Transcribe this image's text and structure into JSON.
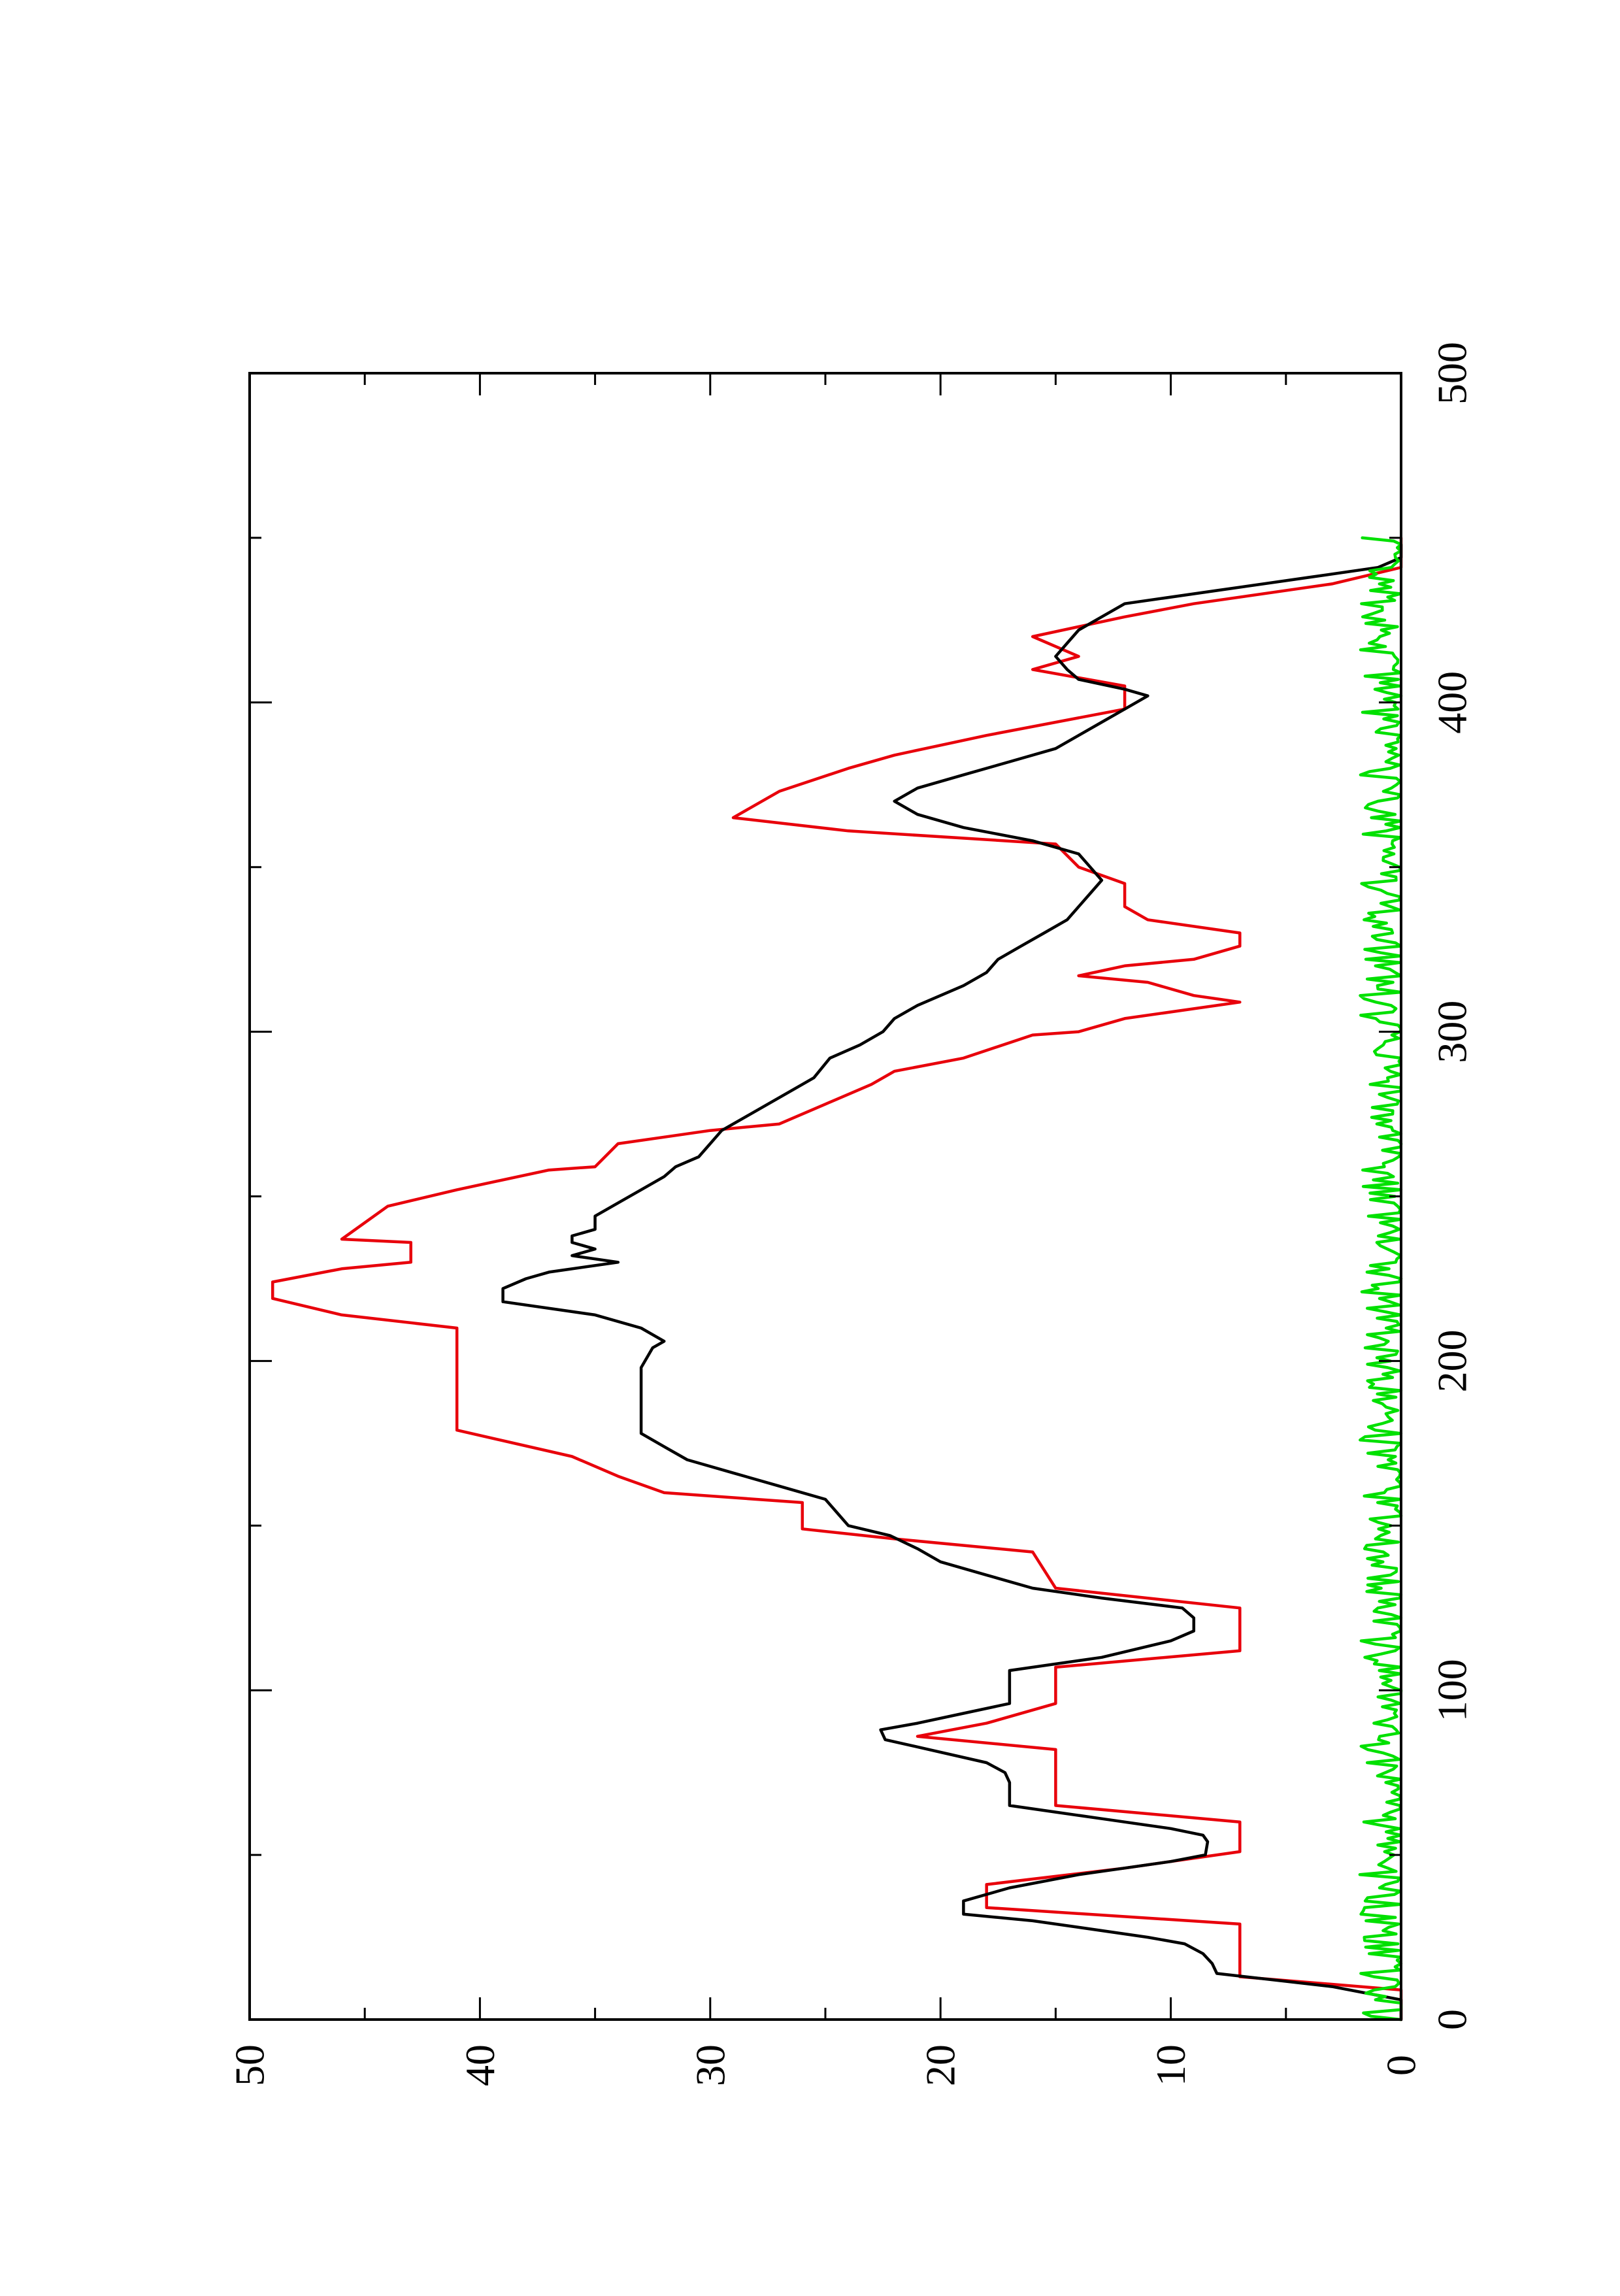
{
  "chart_data": {
    "type": "line",
    "orientation": "rotated-90-clockwise",
    "title": "",
    "xlabel": "",
    "ylabel": "",
    "xlim": [
      0,
      500
    ],
    "ylim": [
      0,
      50
    ],
    "x_ticks": [
      0,
      100,
      200,
      300,
      400,
      500
    ],
    "x_minor_ticks": [
      50,
      150,
      250,
      350,
      450
    ],
    "y_ticks": [
      0,
      10,
      20,
      30,
      40,
      50
    ],
    "y_minor_ticks": [
      5,
      15,
      25,
      35,
      45
    ],
    "grid": false,
    "legend": "none",
    "series": [
      {
        "color": "#e8000b",
        "style": "step",
        "points": [
          [
            0,
            0
          ],
          [
            9,
            0
          ],
          [
            13,
            7
          ],
          [
            29,
            7
          ],
          [
            34,
            18
          ],
          [
            41,
            18
          ],
          [
            46,
            12
          ],
          [
            51,
            7
          ],
          [
            60,
            7
          ],
          [
            65,
            15
          ],
          [
            82,
            15
          ],
          [
            86,
            21
          ],
          [
            90,
            18
          ],
          [
            96,
            15
          ],
          [
            107,
            15
          ],
          [
            112,
            7
          ],
          [
            125,
            7
          ],
          [
            131,
            15
          ],
          [
            142,
            16
          ],
          [
            146,
            22
          ],
          [
            149,
            26
          ],
          [
            157,
            26
          ],
          [
            160,
            32
          ],
          [
            165,
            34
          ],
          [
            171,
            36
          ],
          [
            179,
            41
          ],
          [
            210,
            41
          ],
          [
            214,
            46
          ],
          [
            219,
            49
          ],
          [
            224,
            49
          ],
          [
            228,
            46
          ],
          [
            230,
            43
          ],
          [
            236,
            43
          ],
          [
            237,
            46
          ],
          [
            247,
            44
          ],
          [
            252,
            41
          ],
          [
            258,
            37
          ],
          [
            259,
            35
          ],
          [
            266,
            34
          ],
          [
            268,
            32
          ],
          [
            270,
            30
          ],
          [
            272,
            27
          ],
          [
            278,
            25
          ],
          [
            284,
            23
          ],
          [
            288,
            22
          ],
          [
            292,
            19
          ],
          [
            299,
            16
          ],
          [
            300,
            14
          ],
          [
            304,
            12
          ],
          [
            309,
            7
          ],
          [
            311,
            9
          ],
          [
            315,
            11
          ],
          [
            317,
            14
          ],
          [
            320,
            12
          ],
          [
            322,
            9
          ],
          [
            326,
            7
          ],
          [
            330,
            7
          ],
          [
            334,
            11
          ],
          [
            338,
            12
          ],
          [
            345,
            12
          ],
          [
            350,
            14
          ],
          [
            357,
            15
          ],
          [
            361,
            24
          ],
          [
            365,
            29
          ],
          [
            373,
            27
          ],
          [
            380,
            24
          ],
          [
            384,
            22
          ],
          [
            390,
            18
          ],
          [
            398,
            12
          ],
          [
            405,
            12
          ],
          [
            410,
            16
          ],
          [
            414,
            14
          ],
          [
            420,
            16
          ],
          [
            426,
            12
          ],
          [
            430,
            9
          ],
          [
            436,
            3
          ],
          [
            441,
            0
          ],
          [
            450,
            0
          ]
        ]
      },
      {
        "color": "#000000",
        "style": "line",
        "points": [
          [
            0,
            0
          ],
          [
            6,
            0
          ],
          [
            10,
            3
          ],
          [
            14,
            8
          ],
          [
            17,
            8.2
          ],
          [
            20,
            8.6
          ],
          [
            23,
            9.4
          ],
          [
            25,
            11
          ],
          [
            28,
            14
          ],
          [
            30,
            16
          ],
          [
            32,
            19
          ],
          [
            36,
            19
          ],
          [
            40,
            17
          ],
          [
            44,
            14
          ],
          [
            48,
            10
          ],
          [
            50,
            8.5
          ],
          [
            54,
            8.4
          ],
          [
            56,
            8.6
          ],
          [
            58,
            10
          ],
          [
            61,
            13
          ],
          [
            63,
            15
          ],
          [
            65,
            17
          ],
          [
            67,
            17
          ],
          [
            72,
            17
          ],
          [
            75,
            17.2
          ],
          [
            78,
            18
          ],
          [
            82,
            20.5
          ],
          [
            85,
            22.4
          ],
          [
            88,
            22.6
          ],
          [
            90,
            21
          ],
          [
            93,
            19
          ],
          [
            96,
            17
          ],
          [
            106,
            17
          ],
          [
            110,
            13
          ],
          [
            115,
            10
          ],
          [
            118,
            9
          ],
          [
            122,
            9
          ],
          [
            125,
            9.5
          ],
          [
            128,
            13
          ],
          [
            131,
            16
          ],
          [
            135,
            18
          ],
          [
            139,
            20
          ],
          [
            143,
            21
          ],
          [
            147,
            22.2
          ],
          [
            150,
            24
          ],
          [
            154,
            24.5
          ],
          [
            158,
            25
          ],
          [
            162,
            27
          ],
          [
            166,
            29
          ],
          [
            170,
            31
          ],
          [
            174,
            32
          ],
          [
            178,
            33
          ],
          [
            190,
            33
          ],
          [
            198,
            33
          ],
          [
            204,
            32.5
          ],
          [
            206,
            32
          ],
          [
            210,
            33
          ],
          [
            214,
            35
          ],
          [
            218,
            39
          ],
          [
            222,
            39
          ],
          [
            225,
            38
          ],
          [
            227,
            37
          ],
          [
            230,
            34
          ],
          [
            232,
            36
          ],
          [
            234,
            35
          ],
          [
            236,
            36
          ],
          [
            238,
            36
          ],
          [
            240,
            35
          ],
          [
            244,
            35
          ],
          [
            248,
            34
          ],
          [
            252,
            33
          ],
          [
            256,
            32
          ],
          [
            259,
            31.5
          ],
          [
            262,
            30.5
          ],
          [
            266,
            30
          ],
          [
            270,
            29.5
          ],
          [
            274,
            28.5
          ],
          [
            278,
            27.5
          ],
          [
            282,
            26.5
          ],
          [
            286,
            25.5
          ],
          [
            292,
            24.8
          ],
          [
            296,
            23.5
          ],
          [
            300,
            22.5
          ],
          [
            304,
            22
          ],
          [
            308,
            21
          ],
          [
            311,
            20
          ],
          [
            314,
            19
          ],
          [
            318,
            18
          ],
          [
            322,
            17.5
          ],
          [
            326,
            16.5
          ],
          [
            330,
            15.5
          ],
          [
            334,
            14.5
          ],
          [
            338,
            14
          ],
          [
            342,
            13.5
          ],
          [
            346,
            13
          ],
          [
            350,
            13.5
          ],
          [
            354,
            14
          ],
          [
            358,
            16
          ],
          [
            362,
            19
          ],
          [
            366,
            21
          ],
          [
            370,
            22
          ],
          [
            374,
            21
          ],
          [
            378,
            19
          ],
          [
            382,
            17
          ],
          [
            386,
            15
          ],
          [
            390,
            14
          ],
          [
            394,
            13
          ],
          [
            398,
            12
          ],
          [
            402,
            11
          ],
          [
            404,
            12
          ],
          [
            407,
            14
          ],
          [
            410,
            14.5
          ],
          [
            414,
            15
          ],
          [
            418,
            14.5
          ],
          [
            422,
            14
          ],
          [
            426,
            13
          ],
          [
            430,
            12
          ],
          [
            434,
            8
          ],
          [
            438,
            4
          ],
          [
            441,
            1
          ],
          [
            444,
            0
          ],
          [
            448,
            0
          ]
        ]
      },
      {
        "color": "#00e000",
        "style": "noise",
        "amplitude_max": 1.8,
        "range": [
          0,
          450
        ]
      }
    ]
  }
}
